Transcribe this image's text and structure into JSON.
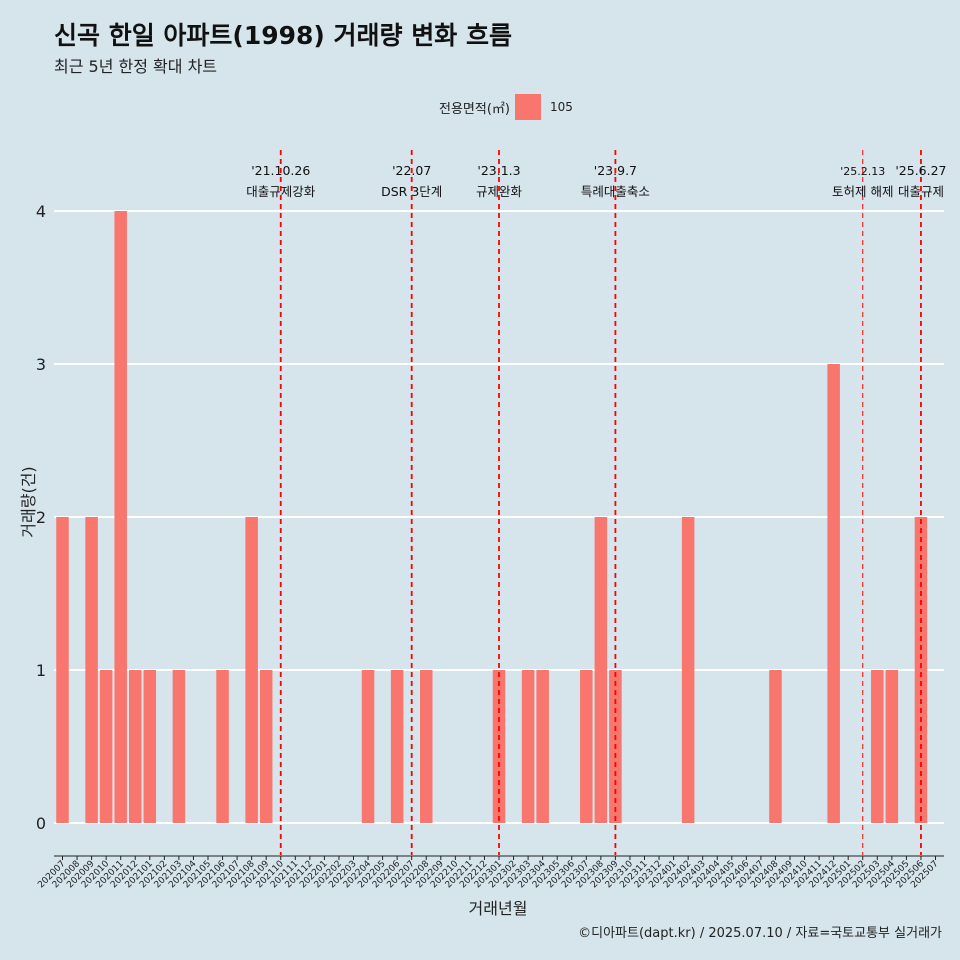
{
  "colors": {
    "bar": "#f8766d",
    "background": "#d6e4ec",
    "grid": "#ffffff",
    "event_line": "#ff0000"
  },
  "chart_data": {
    "type": "bar",
    "title": "신곡 한일 아파트(1998) 거래량 변화 흐름",
    "subtitle": "최근 5년 한정 확대 차트",
    "xlabel": "거래년월",
    "ylabel": "거래량(건)",
    "ylim": [
      0,
      4
    ],
    "yticks": [
      0,
      1,
      2,
      3,
      4
    ],
    "grid": true,
    "legend": {
      "title": "전용면적(㎡)",
      "placement": "top-center",
      "entries": [
        "105"
      ]
    },
    "categories": [
      "202007",
      "202008",
      "202009",
      "202010",
      "202011",
      "202012",
      "202101",
      "202102",
      "202103",
      "202104",
      "202105",
      "202106",
      "202107",
      "202108",
      "202109",
      "202110",
      "202111",
      "202112",
      "202201",
      "202202",
      "202203",
      "202204",
      "202205",
      "202206",
      "202207",
      "202208",
      "202209",
      "202210",
      "202211",
      "202212",
      "202301",
      "202302",
      "202303",
      "202304",
      "202305",
      "202306",
      "202307",
      "202308",
      "202309",
      "202310",
      "202311",
      "202312",
      "202401",
      "202402",
      "202403",
      "202404",
      "202405",
      "202406",
      "202407",
      "202408",
      "202409",
      "202410",
      "202411",
      "202412",
      "202501",
      "202502",
      "202503",
      "202504",
      "202505",
      "202506",
      "202507"
    ],
    "series": [
      {
        "name": "105",
        "values": [
          2,
          0,
          2,
          1,
          4,
          1,
          1,
          0,
          1,
          0,
          0,
          1,
          0,
          2,
          1,
          0,
          0,
          0,
          0,
          0,
          0,
          1,
          0,
          1,
          0,
          1,
          0,
          0,
          0,
          0,
          1,
          0,
          1,
          1,
          0,
          0,
          1,
          2,
          1,
          0,
          0,
          0,
          0,
          2,
          0,
          0,
          0,
          0,
          0,
          1,
          0,
          0,
          0,
          3,
          0,
          0,
          1,
          1,
          0,
          2,
          0
        ]
      }
    ],
    "annotations": [
      {
        "date": "'21.10.26",
        "label": "대출규제강화",
        "x": "202110"
      },
      {
        "date": "'22.07",
        "label": "DSR 3단계",
        "x": "202207"
      },
      {
        "date": "'23.1.3",
        "label": "규제완화",
        "x": "202301"
      },
      {
        "date": "'23.9.7",
        "label": "특례대출축소",
        "x": "202309"
      },
      {
        "date": "'25.2.13",
        "label": "토허제 해제",
        "x": "202502"
      },
      {
        "date": "'25.6.27",
        "label": "대출규제",
        "x": "202506"
      }
    ]
  },
  "caption": "©디아파트(dapt.kr) / 2025.07.10 / 자료=국토교통부 실거래가"
}
